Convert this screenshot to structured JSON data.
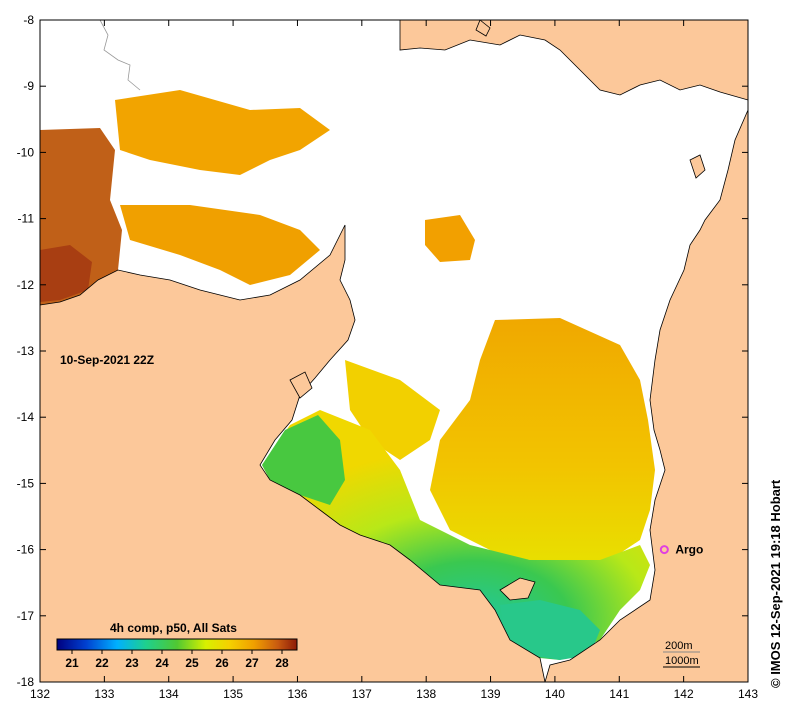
{
  "timestamp_label": "10-Sep-2021 22Z",
  "colorbar": {
    "title": "4h comp, p50, All Sats",
    "ticks": [
      "21",
      "22",
      "23",
      "24",
      "25",
      "26",
      "27",
      "28"
    ],
    "range": [
      20.5,
      28.5
    ],
    "colors": [
      "#00007f",
      "#0033cc",
      "#00a0ff",
      "#1ed09e",
      "#50c832",
      "#a8e01a",
      "#e6e600",
      "#f5c800",
      "#f0a000",
      "#d87010",
      "#b84a10",
      "#8c1a08"
    ]
  },
  "argo": {
    "label": "Argo",
    "lon": 141.7,
    "lat": -16.0,
    "color": "#e040e0"
  },
  "contours": {
    "line1": "200m",
    "line2": "1000m"
  },
  "credit": "© IMOS 12-Sep-2021 19:18 Hobart",
  "axes": {
    "x_ticks": [
      "132",
      "133",
      "134",
      "135",
      "136",
      "137",
      "138",
      "139",
      "140",
      "141",
      "142",
      "143"
    ],
    "y_ticks": [
      "-8",
      "-9",
      "-10",
      "-11",
      "-12",
      "-13",
      "-14",
      "-15",
      "-16",
      "-17",
      "-18"
    ],
    "xlim": [
      132,
      143
    ],
    "ylim": [
      -18,
      -8
    ]
  },
  "colors": {
    "land": "#fcc89a",
    "no_data": "#ffffff",
    "coast": "#000000"
  }
}
